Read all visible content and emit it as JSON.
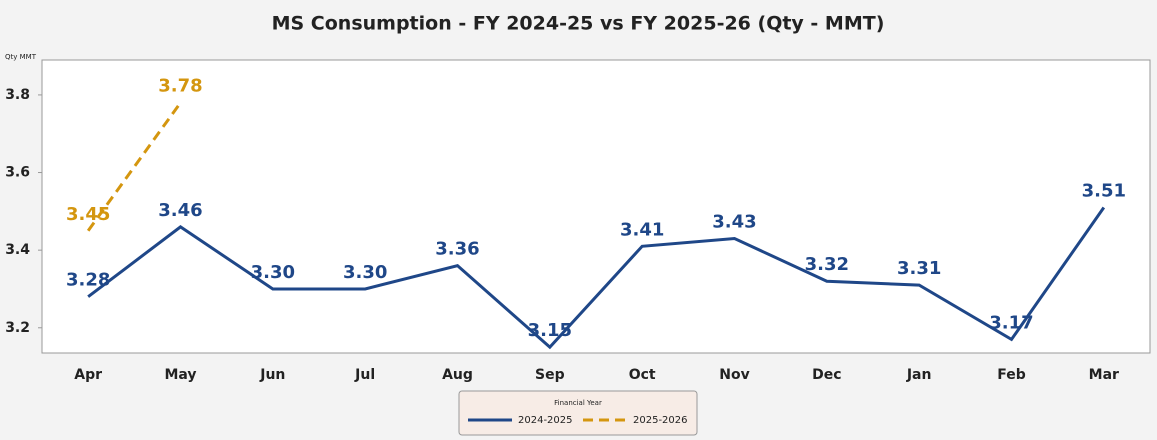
{
  "chart_data": {
    "type": "line",
    "title": "MS Consumption - FY 2024-25 vs FY 2025-26 (Qty - MMT)",
    "y_label": "Qty MMT",
    "categories": [
      "Apr",
      "May",
      "Jun",
      "Jul",
      "Aug",
      "Sep",
      "Oct",
      "Nov",
      "Dec",
      "Jan",
      "Feb",
      "Mar"
    ],
    "series": [
      {
        "name": "2024-2025",
        "color": "#1f4788",
        "dash": false,
        "values": [
          3.28,
          3.46,
          3.3,
          3.3,
          3.36,
          3.15,
          3.41,
          3.43,
          3.32,
          3.31,
          3.17,
          3.51
        ],
        "value_labels": [
          "3.28",
          "3.46",
          "3.30",
          "3.30",
          "3.36",
          "3.15",
          "3.41",
          "3.43",
          "3.32",
          "3.31",
          "3.17",
          "3.51"
        ]
      },
      {
        "name": "2025-2026",
        "color": "#d4960f",
        "dash": true,
        "values": [
          3.45,
          3.78,
          null,
          null,
          null,
          null,
          null,
          null,
          null,
          null,
          null,
          null
        ],
        "value_labels": [
          "3.45",
          "3.78",
          null,
          null,
          null,
          null,
          null,
          null,
          null,
          null,
          null,
          null
        ]
      }
    ],
    "ylim": [
      3.135,
      3.89
    ],
    "yticks": [
      3.2,
      3.4,
      3.6,
      3.8
    ],
    "legend_title": "Financial Year",
    "legend_position": "bottom"
  }
}
